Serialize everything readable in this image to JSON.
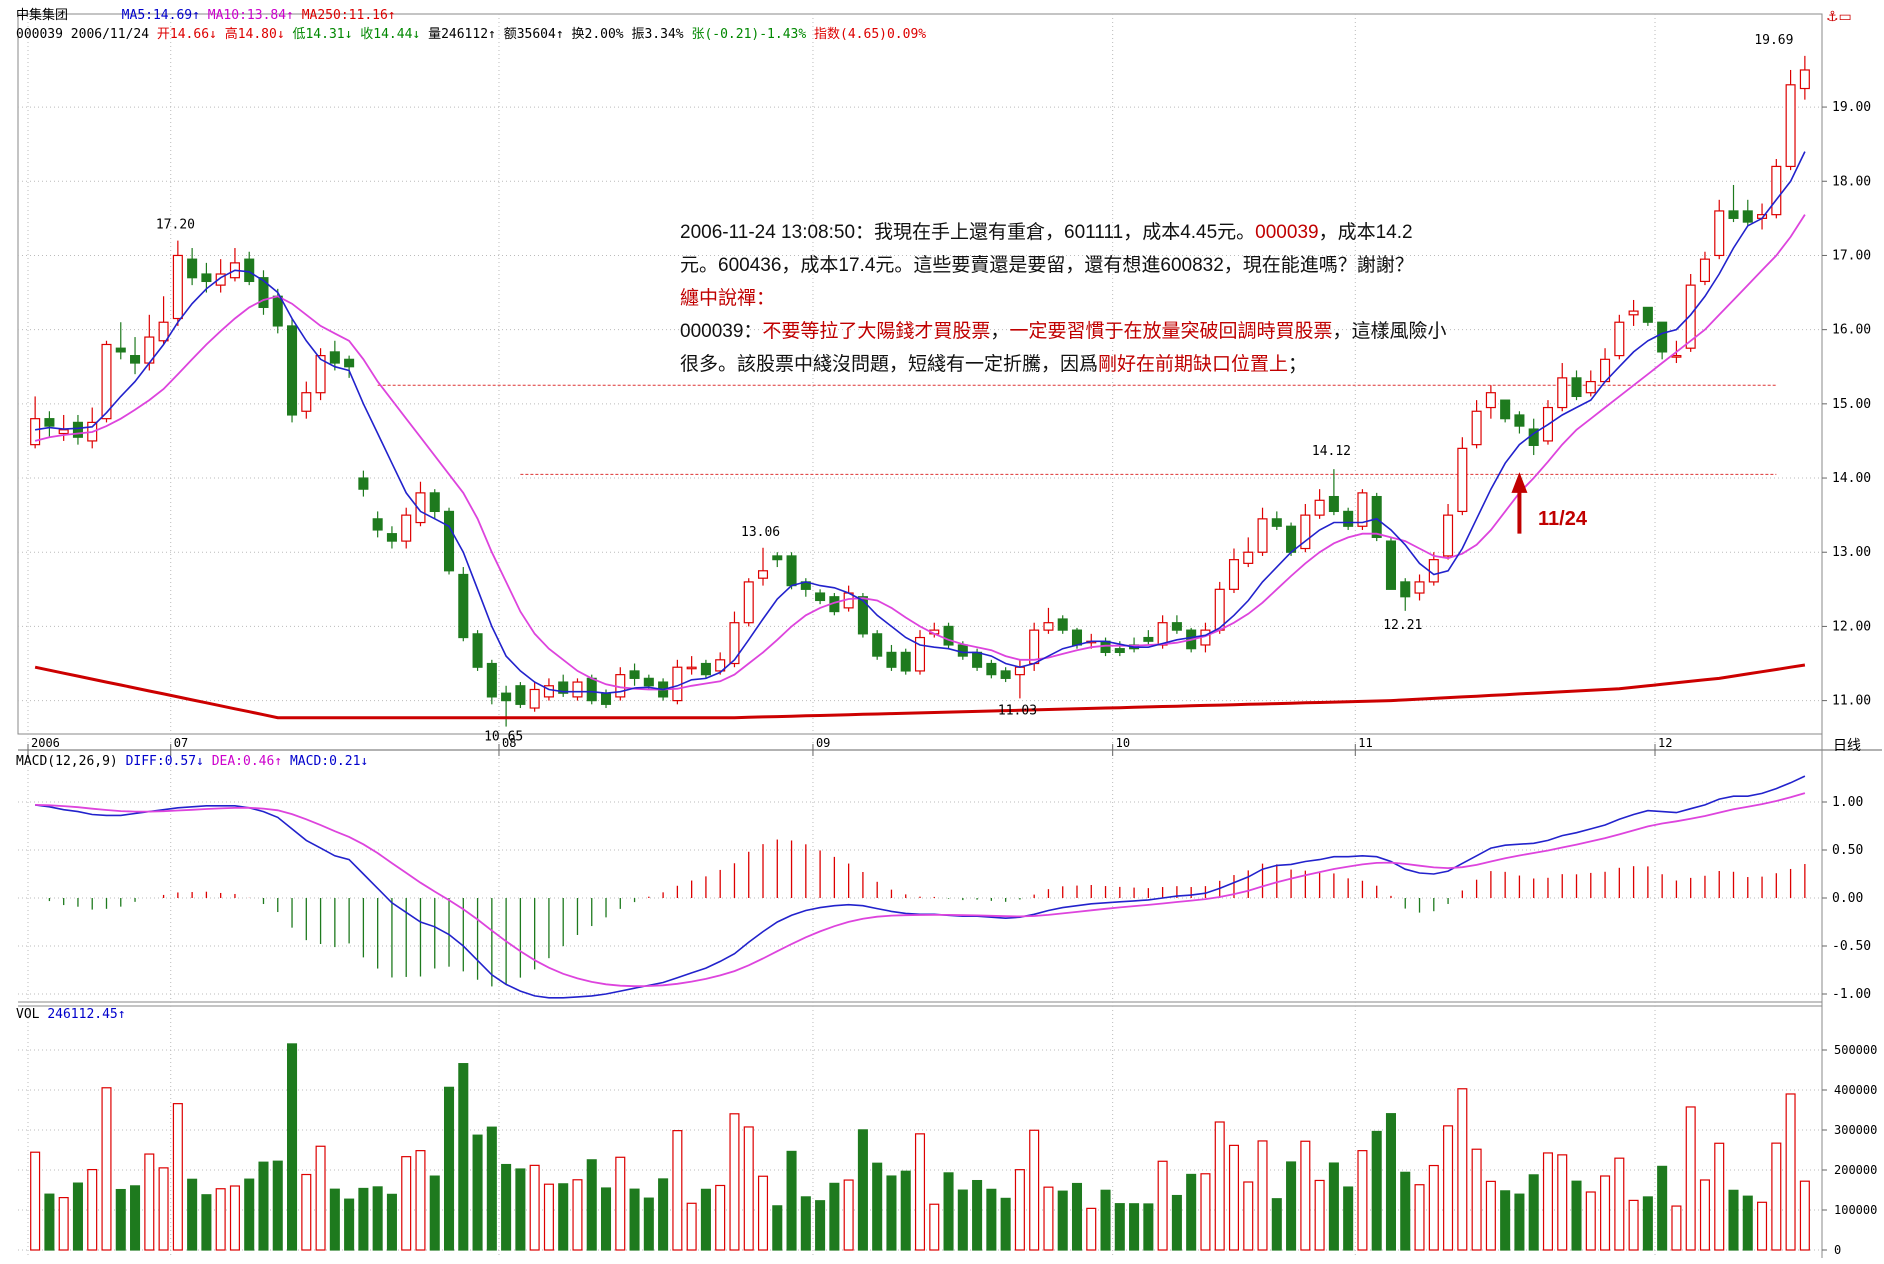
{
  "header": {
    "stock_name": "中集集团",
    "ma5": "MA5:14.69↑",
    "ma10": "MA10:13.84↑",
    "ma250": "MA250:11.16↑",
    "code_date": "000039 2006/11/24",
    "open": "开14.66↓",
    "high": "高14.80↓",
    "low": "低14.31↓",
    "close": "收14.44↓",
    "volume": "量246112↑",
    "amount": "额35604↑",
    "turnover": "换2.00%",
    "amplitude": "振3.34%",
    "change": "张(-0.21)-1.43%",
    "index": "指数(4.65)0.09%"
  },
  "macd_header": {
    "params": "MACD(12,26,9)",
    "diff": "DIFF:0.57↓",
    "dea": "DEA:0.46↑",
    "macd": "MACD:0.21↓"
  },
  "vol_header": {
    "label": "VOL",
    "value": "246112.45↑"
  },
  "period_label": "日线",
  "annotation": {
    "line1": "2006-11-24 13:08:50：我現在手上還有重倉，601111，成本4.45元。",
    "line1_red": "000039",
    "line1_tail": "，成本14.2",
    "line2": "元。600436，成本17.4元。這些要賣還是要留，還有想進600832，現在能進嗎？謝謝？",
    "line3_red": "纏中說禪：",
    "line4_a": "000039：",
    "line4_red1": "不要等拉了大陽錢才買股票",
    "line4_b": "，",
    "line4_red2": "一定要習慣于在放量突破回調時買股票",
    "line4_c": "，這樣風險小",
    "line5_a": "很多。該股票中綫沒問題，短綫有一定折騰，因爲",
    "line5_red": "剛好在前期缺口位置上",
    "line5_b": "；"
  },
  "arrow_label": "11/24",
  "colors": {
    "up": "#dd0000",
    "down": "#1e7a1e",
    "ma5": "#2222cc",
    "ma10": "#dd44dd",
    "ma250": "#cc0000",
    "guide": "#dd3333"
  },
  "chart_data": {
    "type": "candlestick",
    "price_ylim": [
      10.55,
      19.85
    ],
    "price_ticks": [
      "11.00",
      "12.00",
      "13.00",
      "14.00",
      "15.00",
      "16.00",
      "17.00",
      "18.00",
      "19.00"
    ],
    "macd_ticks": [
      "1.00",
      "0.50",
      "0.00",
      "-0.50",
      "-1.00"
    ],
    "vol_ticks": [
      "500000",
      "400000",
      "300000",
      "200000",
      "100000",
      "0"
    ],
    "x_labels": [
      "2006",
      "07",
      "08",
      "09",
      "10",
      "11",
      "12"
    ],
    "guide_levels": [
      15.25,
      14.05
    ],
    "price_annotations": [
      {
        "text": "17.20",
        "value": 17.2
      },
      {
        "text": "10.65",
        "value": 10.65
      },
      {
        "text": "13.06",
        "value": 13.06
      },
      {
        "text": "11.03",
        "value": 11.03
      },
      {
        "text": "14.12",
        "value": 14.12
      },
      {
        "text": "12.21",
        "value": 12.21
      },
      {
        "text": "19.69",
        "value": 19.69
      }
    ],
    "close": [
      14.8,
      14.7,
      14.65,
      14.55,
      14.75,
      15.8,
      15.7,
      15.55,
      15.9,
      16.1,
      17.0,
      16.7,
      16.65,
      16.75,
      16.9,
      16.65,
      16.3,
      16.05,
      14.85,
      15.15,
      15.65,
      15.55,
      15.5,
      13.85,
      13.3,
      13.15,
      13.5,
      13.8,
      13.55,
      12.75,
      11.85,
      11.45,
      11.05,
      11.0,
      10.95,
      11.15,
      11.2,
      11.1,
      11.25,
      11.0,
      10.95,
      11.35,
      11.3,
      11.2,
      11.05,
      11.45,
      11.45,
      11.35,
      11.55,
      12.05,
      12.6,
      12.75,
      12.9,
      12.55,
      12.5,
      12.35,
      12.2,
      12.45,
      11.9,
      11.6,
      11.45,
      11.4,
      11.85,
      11.95,
      11.75,
      11.6,
      11.45,
      11.35,
      11.3,
      11.45,
      11.95,
      12.05,
      11.95,
      11.75,
      11.8,
      11.65,
      11.65,
      11.7,
      11.8,
      12.05,
      11.95,
      11.7,
      11.95,
      12.5,
      12.9,
      13.0,
      13.45,
      13.35,
      13.0,
      13.5,
      13.7,
      13.55,
      13.35,
      13.8,
      13.2,
      12.5,
      12.4,
      12.6,
      12.9,
      13.5,
      14.4,
      14.9,
      15.15,
      14.8,
      14.7,
      14.44,
      14.95,
      15.35,
      15.1,
      15.3,
      15.6,
      16.1,
      16.25,
      16.1,
      15.7,
      15.65,
      16.6,
      16.95,
      17.6,
      17.5,
      17.45,
      17.55,
      18.2,
      19.3,
      19.5
    ],
    "open": [
      14.45,
      14.8,
      14.6,
      14.75,
      14.5,
      14.8,
      15.75,
      15.65,
      15.55,
      15.85,
      16.15,
      16.95,
      16.75,
      16.6,
      16.7,
      16.95,
      16.7,
      16.45,
      16.05,
      14.9,
      15.15,
      15.7,
      15.6,
      14.0,
      13.45,
      13.25,
      13.15,
      13.4,
      13.8,
      13.55,
      12.7,
      11.9,
      11.5,
      11.1,
      11.2,
      10.9,
      11.05,
      11.25,
      11.05,
      11.3,
      11.1,
      11.05,
      11.4,
      11.3,
      11.25,
      11.0,
      11.45,
      11.5,
      11.4,
      11.5,
      12.05,
      12.65,
      12.95,
      12.95,
      12.6,
      12.45,
      12.4,
      12.25,
      12.4,
      11.9,
      11.65,
      11.65,
      11.4,
      11.9,
      12.0,
      11.75,
      11.65,
      11.5,
      11.4,
      11.35,
      11.5,
      11.95,
      12.1,
      11.95,
      11.8,
      11.8,
      11.7,
      11.75,
      11.85,
      11.75,
      12.05,
      11.95,
      11.75,
      11.95,
      12.5,
      12.85,
      13.0,
      13.45,
      13.35,
      13.05,
      13.5,
      13.75,
      13.55,
      13.35,
      13.75,
      13.15,
      12.6,
      12.45,
      12.6,
      12.95,
      13.55,
      14.45,
      14.95,
      15.05,
      14.85,
      14.66,
      14.5,
      14.95,
      15.35,
      15.15,
      15.3,
      15.65,
      16.2,
      16.3,
      16.1,
      15.65,
      15.75,
      16.65,
      17.0,
      17.6,
      17.6,
      17.5,
      17.55,
      18.2,
      19.25
    ],
    "high": [
      15.1,
      14.9,
      14.85,
      14.85,
      14.95,
      15.85,
      16.1,
      15.9,
      16.2,
      16.45,
      17.2,
      17.1,
      16.9,
      16.95,
      17.1,
      17.05,
      16.8,
      16.55,
      16.15,
      15.3,
      15.75,
      15.85,
      15.65,
      14.1,
      13.55,
      13.35,
      13.6,
      13.95,
      13.85,
      13.6,
      12.8,
      11.95,
      11.55,
      11.2,
      11.25,
      11.25,
      11.3,
      11.35,
      11.3,
      11.35,
      11.15,
      11.45,
      11.5,
      11.35,
      11.3,
      11.55,
      11.6,
      11.55,
      11.65,
      12.2,
      12.65,
      13.06,
      13.0,
      13.0,
      12.65,
      12.5,
      12.45,
      12.55,
      12.45,
      11.95,
      11.75,
      11.7,
      11.95,
      12.05,
      12.05,
      11.8,
      11.7,
      11.55,
      11.45,
      11.55,
      12.05,
      12.25,
      12.15,
      11.98,
      11.9,
      11.85,
      11.8,
      11.85,
      11.95,
      12.15,
      12.15,
      11.98,
      12.05,
      12.6,
      13.05,
      13.2,
      13.6,
      13.55,
      13.4,
      13.65,
      13.85,
      14.12,
      13.6,
      13.85,
      13.8,
      13.2,
      12.65,
      12.7,
      13.0,
      13.65,
      14.55,
      15.05,
      15.25,
      15.0,
      14.9,
      14.8,
      15.05,
      15.55,
      15.45,
      15.45,
      15.75,
      16.2,
      16.4,
      16.3,
      16.1,
      15.85,
      16.75,
      17.05,
      17.75,
      17.95,
      17.75,
      17.7,
      18.3,
      19.5,
      19.69
    ],
    "low": [
      14.4,
      14.55,
      14.5,
      14.45,
      14.4,
      14.75,
      15.6,
      15.4,
      15.45,
      15.8,
      16.05,
      16.6,
      16.5,
      16.5,
      16.65,
      16.6,
      16.2,
      15.95,
      14.75,
      14.8,
      15.05,
      15.45,
      15.35,
      13.75,
      13.2,
      13.05,
      13.05,
      13.35,
      13.45,
      12.7,
      11.8,
      11.4,
      10.95,
      10.65,
      10.9,
      10.85,
      11.0,
      11.05,
      11.0,
      10.95,
      10.9,
      11.0,
      11.2,
      11.15,
      11.0,
      10.95,
      11.35,
      11.3,
      11.35,
      11.45,
      12.0,
      12.55,
      12.8,
      12.5,
      12.4,
      12.3,
      12.15,
      12.2,
      11.85,
      11.55,
      11.4,
      11.35,
      11.35,
      11.85,
      11.7,
      11.55,
      11.4,
      11.3,
      11.25,
      11.03,
      11.4,
      11.9,
      11.9,
      11.7,
      11.7,
      11.6,
      11.6,
      11.65,
      11.75,
      11.7,
      11.9,
      11.65,
      11.65,
      11.9,
      12.45,
      12.8,
      12.95,
      13.3,
      12.95,
      13.0,
      13.45,
      13.5,
      13.3,
      13.3,
      13.15,
      12.5,
      12.21,
      12.35,
      12.55,
      12.9,
      13.5,
      14.4,
      14.8,
      14.75,
      14.6,
      14.31,
      14.45,
      14.9,
      15.05,
      15.1,
      15.3,
      15.6,
      16.05,
      16.05,
      15.6,
      15.55,
      15.7,
      16.6,
      16.95,
      17.45,
      17.4,
      17.35,
      17.5,
      18.15,
      19.1
    ],
    "ma5": [
      14.65,
      14.68,
      14.66,
      14.67,
      14.69,
      14.88,
      15.1,
      15.3,
      15.55,
      15.8,
      16.1,
      16.35,
      16.55,
      16.7,
      16.8,
      16.78,
      16.66,
      16.5,
      16.15,
      15.85,
      15.6,
      15.5,
      15.45,
      15.0,
      14.6,
      14.2,
      13.8,
      13.55,
      13.45,
      13.35,
      13.0,
      12.5,
      12.0,
      11.6,
      11.4,
      11.25,
      11.15,
      11.12,
      11.12,
      11.12,
      11.1,
      11.12,
      11.17,
      11.18,
      11.15,
      11.2,
      11.28,
      11.3,
      11.38,
      11.55,
      11.82,
      12.1,
      12.37,
      12.55,
      12.6,
      12.55,
      12.52,
      12.45,
      12.35,
      12.15,
      12.0,
      11.85,
      11.75,
      11.72,
      11.7,
      11.65,
      11.65,
      11.6,
      11.5,
      11.45,
      11.5,
      11.6,
      11.7,
      11.75,
      11.8,
      11.8,
      11.76,
      11.72,
      11.72,
      11.77,
      11.82,
      11.85,
      11.88,
      11.98,
      12.15,
      12.35,
      12.6,
      12.8,
      13.0,
      13.15,
      13.3,
      13.4,
      13.4,
      13.4,
      13.45,
      13.3,
      13.1,
      12.85,
      12.7,
      12.75,
      13.05,
      13.45,
      13.85,
      14.2,
      14.45,
      14.6,
      14.72,
      14.85,
      14.95,
      15.05,
      15.3,
      15.5,
      15.7,
      15.85,
      15.95,
      16.0,
      16.2,
      16.45,
      16.75,
      17.1,
      17.4,
      17.5,
      17.75,
      18.0,
      18.4
    ],
    "ma10": [
      14.5,
      14.55,
      14.58,
      14.6,
      14.62,
      14.7,
      14.8,
      14.92,
      15.05,
      15.2,
      15.4,
      15.6,
      15.8,
      15.98,
      16.15,
      16.3,
      16.4,
      16.45,
      16.35,
      16.2,
      16.05,
      15.95,
      15.85,
      15.6,
      15.3,
      15.05,
      14.8,
      14.55,
      14.3,
      14.05,
      13.8,
      13.45,
      13.0,
      12.6,
      12.2,
      11.9,
      11.7,
      11.55,
      11.4,
      11.3,
      11.22,
      11.18,
      11.16,
      11.15,
      11.15,
      11.16,
      11.2,
      11.23,
      11.26,
      11.35,
      11.5,
      11.65,
      11.82,
      12.0,
      12.15,
      12.25,
      12.32,
      12.37,
      12.38,
      12.35,
      12.25,
      12.12,
      12.0,
      11.9,
      11.82,
      11.76,
      11.72,
      11.68,
      11.6,
      11.55,
      11.55,
      11.58,
      11.63,
      11.68,
      11.72,
      11.74,
      11.74,
      11.74,
      11.75,
      11.76,
      11.78,
      11.82,
      11.87,
      11.95,
      12.05,
      12.17,
      12.32,
      12.5,
      12.68,
      12.85,
      13.0,
      13.12,
      13.2,
      13.25,
      13.25,
      13.2,
      13.15,
      13.05,
      12.95,
      12.92,
      12.98,
      13.1,
      13.3,
      13.55,
      13.8,
      14.0,
      14.22,
      14.45,
      14.65,
      14.8,
      14.95,
      15.1,
      15.25,
      15.4,
      15.55,
      15.7,
      15.85,
      16.0,
      16.2,
      16.4,
      16.6,
      16.8,
      17.0,
      17.25,
      17.55
    ],
    "ma250": [
      11.45,
      11.41,
      11.37,
      11.33,
      11.29,
      11.25,
      11.21,
      11.17,
      11.13,
      11.09,
      11.05,
      11.01,
      10.97,
      10.93,
      10.89,
      10.85,
      10.81,
      10.77,
      10.77,
      10.77,
      10.77,
      10.77,
      10.77,
      10.77,
      10.77,
      10.77,
      10.77,
      10.77,
      10.77,
      10.77,
      10.77,
      10.77,
      10.77,
      10.77,
      10.77,
      10.77,
      10.77,
      10.77,
      10.77,
      10.77,
      10.77,
      10.77,
      10.77,
      10.77,
      10.77,
      10.77,
      10.77,
      10.77,
      10.77,
      10.77,
      10.775,
      10.78,
      10.785,
      10.79,
      10.795,
      10.8,
      10.805,
      10.81,
      10.815,
      10.82,
      10.825,
      10.83,
      10.835,
      10.84,
      10.845,
      10.85,
      10.855,
      10.86,
      10.865,
      10.87,
      10.875,
      10.88,
      10.885,
      10.89,
      10.895,
      10.9,
      10.905,
      10.91,
      10.915,
      10.92,
      10.925,
      10.93,
      10.935,
      10.94,
      10.945,
      10.95,
      10.955,
      10.96,
      10.965,
      10.97,
      10.975,
      10.98,
      10.985,
      10.99,
      10.995,
      11.0,
      11.01,
      11.02,
      11.03,
      11.04,
      11.05,
      11.06,
      11.07,
      11.08,
      11.09,
      11.1,
      11.11,
      11.12,
      11.13,
      11.14,
      11.15,
      11.16,
      11.18,
      11.2,
      11.22,
      11.24,
      11.26,
      11.28,
      11.3,
      11.33,
      11.36,
      11.39,
      11.42,
      11.45,
      11.48
    ],
    "diff": [
      0.97,
      0.95,
      0.92,
      0.9,
      0.87,
      0.86,
      0.86,
      0.88,
      0.9,
      0.92,
      0.94,
      0.95,
      0.96,
      0.96,
      0.96,
      0.94,
      0.9,
      0.84,
      0.72,
      0.6,
      0.52,
      0.44,
      0.4,
      0.25,
      0.1,
      -0.05,
      -0.15,
      -0.25,
      -0.3,
      -0.38,
      -0.5,
      -0.65,
      -0.8,
      -0.9,
      -0.97,
      -1.02,
      -1.04,
      -1.04,
      -1.03,
      -1.02,
      -1.0,
      -0.97,
      -0.94,
      -0.91,
      -0.88,
      -0.83,
      -0.78,
      -0.73,
      -0.66,
      -0.58,
      -0.46,
      -0.35,
      -0.25,
      -0.18,
      -0.13,
      -0.1,
      -0.08,
      -0.07,
      -0.08,
      -0.11,
      -0.14,
      -0.16,
      -0.17,
      -0.17,
      -0.18,
      -0.19,
      -0.19,
      -0.2,
      -0.21,
      -0.2,
      -0.17,
      -0.13,
      -0.1,
      -0.08,
      -0.06,
      -0.05,
      -0.04,
      -0.03,
      -0.02,
      0.0,
      0.02,
      0.03,
      0.05,
      0.1,
      0.16,
      0.22,
      0.3,
      0.34,
      0.35,
      0.38,
      0.4,
      0.43,
      0.43,
      0.44,
      0.43,
      0.38,
      0.3,
      0.26,
      0.25,
      0.28,
      0.36,
      0.44,
      0.52,
      0.55,
      0.56,
      0.57,
      0.6,
      0.65,
      0.68,
      0.72,
      0.76,
      0.82,
      0.87,
      0.91,
      0.9,
      0.89,
      0.93,
      0.97,
      1.03,
      1.06,
      1.06,
      1.09,
      1.14,
      1.2,
      1.27
    ]
  }
}
